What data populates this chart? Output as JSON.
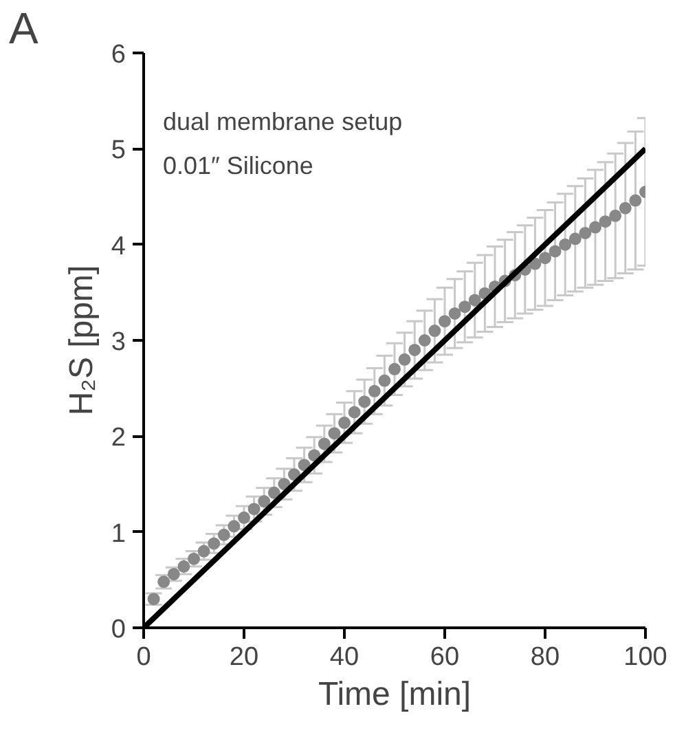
{
  "chart_data": {
    "type": "scatter",
    "xlabel": "Time [min]",
    "ylabel": "H₂S [ppm]",
    "annotations": [
      "A",
      "dual membrane setup",
      "0.01″ Silicone"
    ],
    "x": [
      2,
      4,
      6,
      8,
      10,
      12,
      14,
      16,
      18,
      20,
      22,
      24,
      26,
      28,
      30,
      32,
      34,
      36,
      38,
      40,
      42,
      44,
      46,
      48,
      50,
      52,
      54,
      56,
      58,
      60,
      62,
      64,
      66,
      68,
      70,
      72,
      74,
      76,
      78,
      80,
      82,
      84,
      86,
      88,
      90,
      92,
      94,
      96,
      98,
      100
    ],
    "xlim": [
      0,
      100
    ],
    "xticks": [
      0,
      20,
      40,
      60,
      80,
      100
    ],
    "ylim": [
      0,
      6
    ],
    "yticks": [
      0,
      1,
      2,
      3,
      4,
      5,
      6
    ],
    "grid": false,
    "series": [
      {
        "color": "#888888",
        "marker": "circle",
        "values": [
          0.3,
          0.48,
          0.56,
          0.64,
          0.72,
          0.8,
          0.88,
          0.97,
          1.06,
          1.15,
          1.24,
          1.32,
          1.41,
          1.5,
          1.6,
          1.7,
          1.8,
          1.92,
          2.03,
          2.14,
          2.25,
          2.36,
          2.47,
          2.58,
          2.7,
          2.8,
          2.9,
          3.0,
          3.1,
          3.2,
          3.28,
          3.35,
          3.42,
          3.49,
          3.56,
          3.62,
          3.68,
          3.74,
          3.8,
          3.86,
          3.93,
          4.0,
          4.06,
          4.12,
          4.18,
          4.24,
          4.3,
          4.38,
          4.46,
          4.55
        ],
        "errors": [
          0.06,
          0.07,
          0.07,
          0.08,
          0.08,
          0.09,
          0.1,
          0.1,
          0.11,
          0.12,
          0.13,
          0.14,
          0.15,
          0.16,
          0.17,
          0.18,
          0.19,
          0.19,
          0.2,
          0.21,
          0.22,
          0.23,
          0.24,
          0.26,
          0.27,
          0.28,
          0.3,
          0.31,
          0.33,
          0.35,
          0.36,
          0.37,
          0.39,
          0.4,
          0.42,
          0.43,
          0.45,
          0.46,
          0.48,
          0.5,
          0.51,
          0.53,
          0.55,
          0.57,
          0.6,
          0.62,
          0.65,
          0.68,
          0.72,
          0.77
        ]
      },
      {
        "type": "line",
        "color": "#000000",
        "x": [
          0,
          100
        ],
        "values": [
          0,
          5
        ]
      }
    ]
  }
}
